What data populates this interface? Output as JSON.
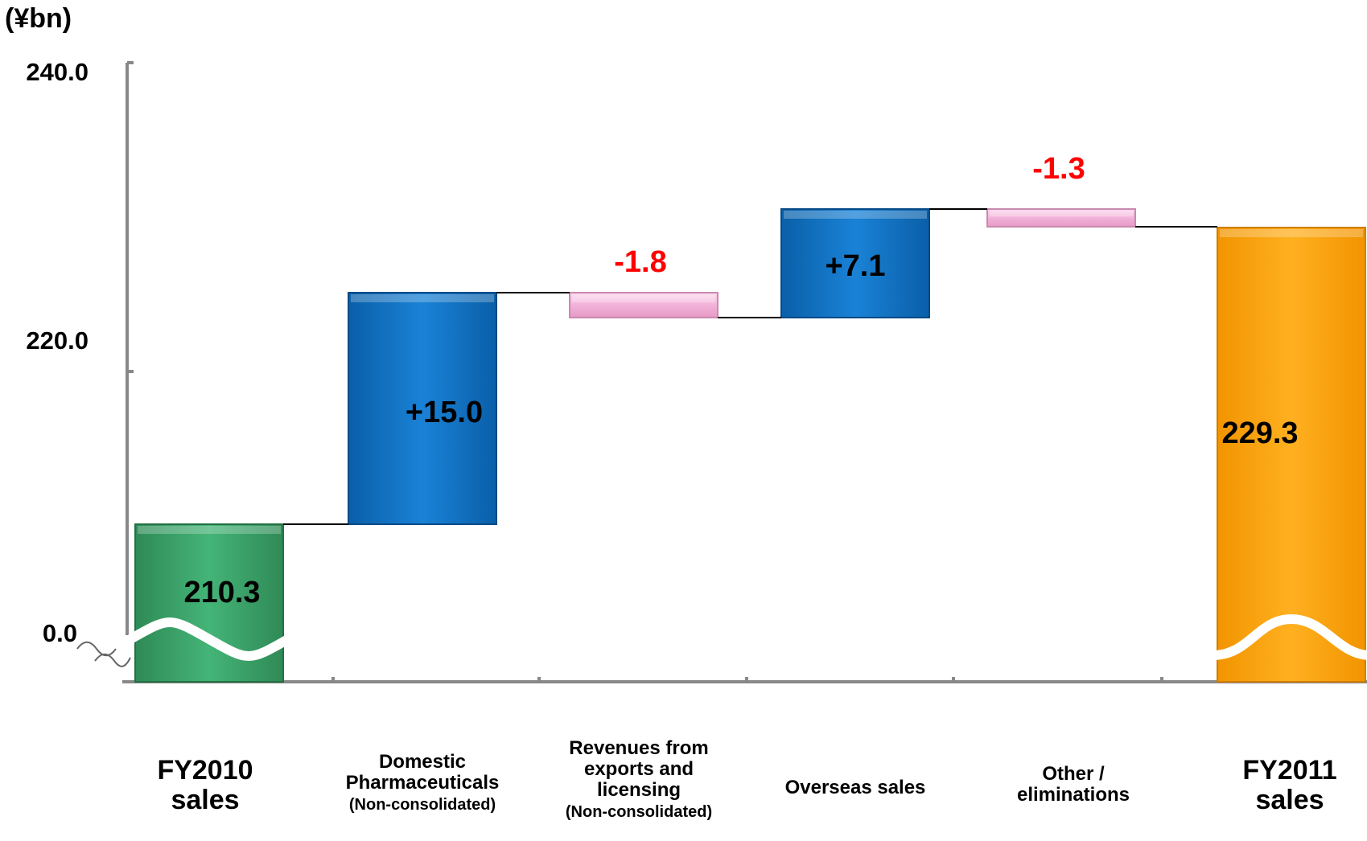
{
  "chart_data": {
    "type": "bar",
    "subtype": "waterfall",
    "unit_label": "(¥bn)",
    "yticks": [
      "240.0",
      "220.0",
      "0.0"
    ],
    "y_axis_break": true,
    "categories": [
      {
        "lines": [
          "FY2010",
          "sales"
        ],
        "sub": ""
      },
      {
        "lines": [
          "Domestic",
          "Pharmaceuticals"
        ],
        "sub": "(Non-consolidated)"
      },
      {
        "lines": [
          "Revenues from",
          "exports and",
          "licensing"
        ],
        "sub": "(Non-consolidated)"
      },
      {
        "lines": [
          "Overseas sales"
        ],
        "sub": ""
      },
      {
        "lines": [
          "Other /",
          "eliminations"
        ],
        "sub": ""
      },
      {
        "lines": [
          "FY2011",
          "sales"
        ],
        "sub": ""
      }
    ],
    "bars": [
      {
        "kind": "total",
        "start": 0,
        "end": 210.3,
        "label": "210.3",
        "color": "#3aa86b"
      },
      {
        "kind": "increase",
        "start": 210.3,
        "end": 225.3,
        "label": "+15.0",
        "color": "#1177cc"
      },
      {
        "kind": "decrease",
        "start": 225.3,
        "end": 223.5,
        "label": "-1.8",
        "color": "#f4b8dc"
      },
      {
        "kind": "increase",
        "start": 223.5,
        "end": 230.6,
        "label": "+7.1",
        "color": "#1177cc"
      },
      {
        "kind": "decrease",
        "start": 230.6,
        "end": 229.3,
        "label": "-1.3",
        "color": "#f4b8dc"
      },
      {
        "kind": "total",
        "start": 0,
        "end": 229.3,
        "label": "229.3",
        "color": "#ffa50a"
      }
    ],
    "label_colors": {
      "value": "#000000",
      "decrease": "#ff0000"
    },
    "legend": "none"
  }
}
